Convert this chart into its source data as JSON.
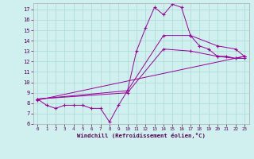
{
  "xlabel": "Windchill (Refroidissement éolien,°C)",
  "bg_color": "#cff0ee",
  "grid_color": "#aad8d4",
  "line_color": "#990099",
  "xlim": [
    -0.5,
    23.5
  ],
  "ylim": [
    6,
    17.6
  ],
  "yticks": [
    6,
    7,
    8,
    9,
    10,
    11,
    12,
    13,
    14,
    15,
    16,
    17
  ],
  "xticks": [
    0,
    1,
    2,
    3,
    4,
    5,
    6,
    7,
    8,
    9,
    10,
    11,
    12,
    13,
    14,
    15,
    16,
    17,
    18,
    19,
    20,
    21,
    22,
    23
  ],
  "series1_x": [
    0,
    1,
    2,
    3,
    4,
    5,
    6,
    7,
    8,
    9,
    10,
    11,
    12,
    13,
    14,
    15,
    16,
    17,
    18,
    19,
    20,
    21,
    22,
    23
  ],
  "series1_y": [
    8.4,
    7.8,
    7.5,
    7.8,
    7.8,
    7.8,
    7.5,
    7.5,
    6.2,
    7.8,
    9.2,
    13.0,
    15.2,
    17.2,
    16.5,
    17.5,
    17.2,
    14.5,
    13.5,
    13.2,
    12.5,
    12.5,
    12.3,
    12.5
  ],
  "series2_x": [
    0,
    10,
    14,
    17,
    20,
    22,
    23
  ],
  "series2_y": [
    8.4,
    9.2,
    14.5,
    14.5,
    13.5,
    13.2,
    12.5
  ],
  "series3_x": [
    0,
    10,
    14,
    17,
    20,
    22,
    23
  ],
  "series3_y": [
    8.4,
    9.0,
    13.2,
    13.0,
    12.5,
    12.3,
    12.3
  ],
  "series4_x": [
    0,
    23
  ],
  "series4_y": [
    8.3,
    12.5
  ]
}
